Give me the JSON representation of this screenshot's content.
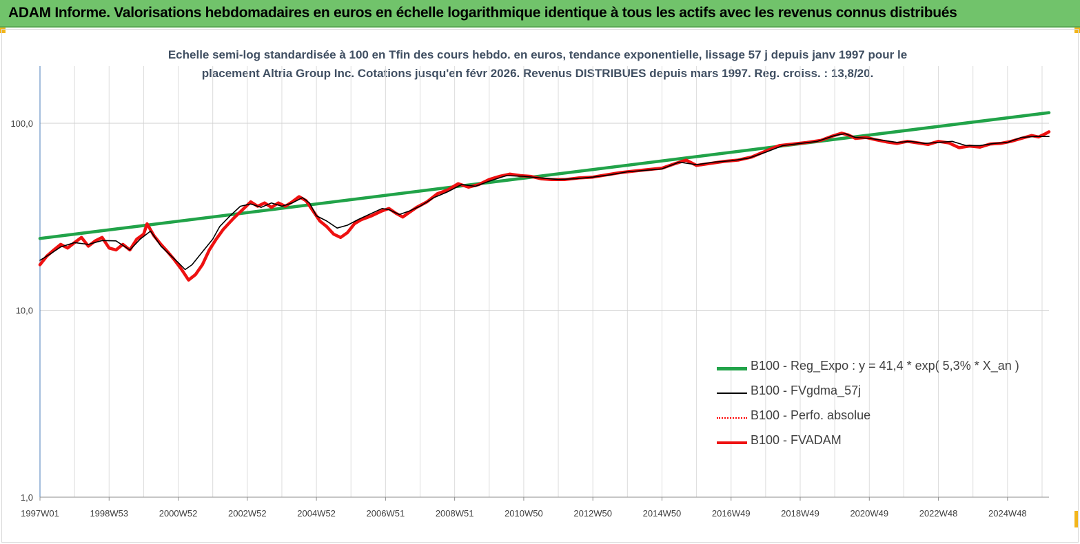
{
  "header": {
    "title": "ADAM Informe. Valorisations hebdomadaires en euros en échelle logarithmique identique à tous les actifs avec les revenus connus distribués"
  },
  "colors": {
    "banner": "#71c36b",
    "regression": "#21a349",
    "smoothed": "#000000",
    "absolute": "#ff0000",
    "fvadam": "#ee1111",
    "subtitle_text": "#404f62"
  },
  "chart_data": {
    "type": "line",
    "title": "Echelle semi-log standardisée à 100 en Tfin des cours hebdo. en euros, tendance exponentielle, lissage 57 j depuis janv 1997 pour le placement Altria Group Inc. Cotations jusqu'en févr 2026. Revenus DISTRIBUES depuis mars 1997. Reg. croiss. : 13,8/20.",
    "title_lines": [
      "Echelle semi-log standardisée à 100 en Tfin des cours hebdo. en euros, tendance exponentielle, lissage 57 j depuis janv 1997 pour le",
      "placement Altria Group Inc. Cotations jusqu'en févr 2026. Revenus DISTRIBUES depuis mars 1997. Reg. croiss. : 13,8/20."
    ],
    "y_scale": "log",
    "ylim": [
      1,
      200
    ],
    "xlim": [
      1997.0,
      2026.2
    ],
    "y_ticks": [
      {
        "value": 1,
        "label": "1,0"
      },
      {
        "value": 10,
        "label": "10,0"
      },
      {
        "value": 100,
        "label": "100,0"
      }
    ],
    "x_ticks": [
      {
        "value": 1997.0,
        "label": "1997W01"
      },
      {
        "value": 1999.0,
        "label": "1998W53"
      },
      {
        "value": 2001.0,
        "label": "2000W52"
      },
      {
        "value": 2003.0,
        "label": "2002W52"
      },
      {
        "value": 2005.0,
        "label": "2004W52"
      },
      {
        "value": 2007.0,
        "label": "2006W51"
      },
      {
        "value": 2009.0,
        "label": "2008W51"
      },
      {
        "value": 2011.0,
        "label": "2010W50"
      },
      {
        "value": 2013.0,
        "label": "2012W50"
      },
      {
        "value": 2015.0,
        "label": "2014W50"
      },
      {
        "value": 2017.0,
        "label": "2016W49"
      },
      {
        "value": 2019.0,
        "label": "2018W49"
      },
      {
        "value": 2021.0,
        "label": "2020W49"
      },
      {
        "value": 2023.0,
        "label": "2022W48"
      },
      {
        "value": 2025.0,
        "label": "2024W48"
      }
    ],
    "minor_grid_step_years": 1,
    "grid": true,
    "legend_position": "bottom-right",
    "series": [
      {
        "name": "B100 - Reg_Expo : y = 41,4 *  exp( 5,3% *  X_an )",
        "style": "thick-solid",
        "color": "#21a349",
        "points": [
          [
            1997.0,
            24.2
          ],
          [
            2026.2,
            114.0
          ]
        ]
      },
      {
        "name": "B100 - FVgdma_57j",
        "style": "thin-solid",
        "color": "#000000",
        "points": [
          [
            1997.0,
            18.5
          ],
          [
            1997.3,
            20.0
          ],
          [
            1997.6,
            21.8
          ],
          [
            1998.0,
            23.0
          ],
          [
            1998.4,
            22.5
          ],
          [
            1998.8,
            23.6
          ],
          [
            1999.2,
            23.5
          ],
          [
            1999.6,
            21.0
          ],
          [
            1999.9,
            24.0
          ],
          [
            2000.2,
            26.5
          ],
          [
            2000.5,
            22.0
          ],
          [
            2000.8,
            19.5
          ],
          [
            2001.0,
            18.0
          ],
          [
            2001.2,
            16.5
          ],
          [
            2001.4,
            17.5
          ],
          [
            2001.7,
            20.5
          ],
          [
            2002.0,
            24.0
          ],
          [
            2002.2,
            28.0
          ],
          [
            2002.5,
            32.0
          ],
          [
            2002.8,
            36.0
          ],
          [
            2003.1,
            37.0
          ],
          [
            2003.4,
            35.5
          ],
          [
            2003.7,
            37.5
          ],
          [
            2004.0,
            36.0
          ],
          [
            2004.3,
            37.5
          ],
          [
            2004.6,
            40.0
          ],
          [
            2004.8,
            37.5
          ],
          [
            2005.0,
            32.0
          ],
          [
            2005.3,
            30.0
          ],
          [
            2005.6,
            27.5
          ],
          [
            2005.9,
            28.5
          ],
          [
            2006.2,
            30.5
          ],
          [
            2006.6,
            33.0
          ],
          [
            2006.9,
            35.0
          ],
          [
            2007.1,
            34.5
          ],
          [
            2007.4,
            32.5
          ],
          [
            2007.7,
            34.0
          ],
          [
            2008.0,
            36.0
          ],
          [
            2008.4,
            40.0
          ],
          [
            2008.8,
            43.0
          ],
          [
            2009.2,
            47.0
          ],
          [
            2009.6,
            46.0
          ],
          [
            2010.0,
            49.0
          ],
          [
            2010.5,
            52.5
          ],
          [
            2011.0,
            52.0
          ],
          [
            2011.5,
            51.0
          ],
          [
            2012.0,
            50.0
          ],
          [
            2012.5,
            50.5
          ],
          [
            2013.0,
            51.5
          ],
          [
            2013.5,
            53.0
          ],
          [
            2014.0,
            55.0
          ],
          [
            2014.5,
            56.0
          ],
          [
            2015.0,
            57.0
          ],
          [
            2015.5,
            62.0
          ],
          [
            2016.0,
            60.0
          ],
          [
            2016.5,
            62.0
          ],
          [
            2017.0,
            63.0
          ],
          [
            2017.5,
            65.0
          ],
          [
            2018.0,
            70.0
          ],
          [
            2018.5,
            76.0
          ],
          [
            2019.0,
            78.0
          ],
          [
            2019.5,
            80.0
          ],
          [
            2020.0,
            86.0
          ],
          [
            2020.3,
            88.0
          ],
          [
            2020.6,
            84.0
          ],
          [
            2021.0,
            83.0
          ],
          [
            2021.4,
            81.0
          ],
          [
            2021.8,
            79.0
          ],
          [
            2022.2,
            80.0
          ],
          [
            2022.6,
            78.0
          ],
          [
            2023.0,
            79.0
          ],
          [
            2023.4,
            80.0
          ],
          [
            2023.8,
            76.0
          ],
          [
            2024.2,
            76.0
          ],
          [
            2024.6,
            78.0
          ],
          [
            2025.0,
            79.0
          ],
          [
            2025.4,
            84.0
          ],
          [
            2025.8,
            85.0
          ],
          [
            2026.2,
            85.0
          ]
        ]
      },
      {
        "name": "B100 - Perfo. absolue",
        "style": "dotted",
        "color": "#ff0000",
        "points": []
      },
      {
        "name": "B100 - FVADAM",
        "style": "thick-solid",
        "color": "#ee1111",
        "points": [
          [
            1997.0,
            17.5
          ],
          [
            1997.2,
            19.5
          ],
          [
            1997.4,
            21.0
          ],
          [
            1997.6,
            22.5
          ],
          [
            1997.8,
            21.5
          ],
          [
            1998.0,
            23.0
          ],
          [
            1998.2,
            24.5
          ],
          [
            1998.4,
            22.0
          ],
          [
            1998.6,
            23.5
          ],
          [
            1998.8,
            24.5
          ],
          [
            1999.0,
            21.5
          ],
          [
            1999.2,
            21.0
          ],
          [
            1999.4,
            22.5
          ],
          [
            1999.6,
            21.0
          ],
          [
            1999.8,
            24.0
          ],
          [
            2000.0,
            25.5
          ],
          [
            2000.1,
            29.0
          ],
          [
            2000.3,
            25.0
          ],
          [
            2000.5,
            22.5
          ],
          [
            2000.7,
            20.5
          ],
          [
            2000.9,
            18.5
          ],
          [
            2001.1,
            16.5
          ],
          [
            2001.3,
            14.5
          ],
          [
            2001.5,
            15.5
          ],
          [
            2001.7,
            17.5
          ],
          [
            2001.9,
            21.0
          ],
          [
            2002.1,
            24.0
          ],
          [
            2002.3,
            27.0
          ],
          [
            2002.6,
            31.0
          ],
          [
            2002.9,
            35.0
          ],
          [
            2003.1,
            38.0
          ],
          [
            2003.3,
            36.0
          ],
          [
            2003.5,
            37.5
          ],
          [
            2003.7,
            35.5
          ],
          [
            2003.9,
            37.5
          ],
          [
            2004.1,
            36.0
          ],
          [
            2004.3,
            38.0
          ],
          [
            2004.5,
            40.5
          ],
          [
            2004.7,
            38.5
          ],
          [
            2004.9,
            34.0
          ],
          [
            2005.1,
            30.0
          ],
          [
            2005.3,
            28.0
          ],
          [
            2005.5,
            25.5
          ],
          [
            2005.7,
            24.5
          ],
          [
            2005.9,
            26.0
          ],
          [
            2006.1,
            29.0
          ],
          [
            2006.3,
            30.5
          ],
          [
            2006.6,
            32.0
          ],
          [
            2006.9,
            34.0
          ],
          [
            2007.1,
            35.0
          ],
          [
            2007.3,
            33.0
          ],
          [
            2007.5,
            31.5
          ],
          [
            2007.7,
            33.5
          ],
          [
            2007.9,
            35.5
          ],
          [
            2008.2,
            38.0
          ],
          [
            2008.5,
            42.0
          ],
          [
            2008.8,
            44.0
          ],
          [
            2009.1,
            47.5
          ],
          [
            2009.4,
            45.5
          ],
          [
            2009.7,
            47.0
          ],
          [
            2010.0,
            50.0
          ],
          [
            2010.3,
            52.0
          ],
          [
            2010.6,
            53.5
          ],
          [
            2010.9,
            52.5
          ],
          [
            2011.2,
            52.0
          ],
          [
            2011.5,
            50.5
          ],
          [
            2011.8,
            50.0
          ],
          [
            2012.2,
            50.0
          ],
          [
            2012.6,
            51.0
          ],
          [
            2013.0,
            51.5
          ],
          [
            2013.4,
            53.0
          ],
          [
            2013.8,
            54.5
          ],
          [
            2014.2,
            55.5
          ],
          [
            2014.6,
            56.5
          ],
          [
            2015.0,
            57.5
          ],
          [
            2015.4,
            61.0
          ],
          [
            2015.7,
            63.5
          ],
          [
            2016.0,
            59.5
          ],
          [
            2016.4,
            61.0
          ],
          [
            2016.8,
            62.5
          ],
          [
            2017.2,
            63.5
          ],
          [
            2017.6,
            66.0
          ],
          [
            2018.0,
            71.0
          ],
          [
            2018.4,
            76.0
          ],
          [
            2018.8,
            77.5
          ],
          [
            2019.2,
            79.0
          ],
          [
            2019.6,
            81.0
          ],
          [
            2019.9,
            85.0
          ],
          [
            2020.2,
            88.5
          ],
          [
            2020.4,
            86.5
          ],
          [
            2020.6,
            83.0
          ],
          [
            2020.9,
            84.0
          ],
          [
            2021.2,
            81.5
          ],
          [
            2021.5,
            79.5
          ],
          [
            2021.8,
            78.0
          ],
          [
            2022.1,
            80.0
          ],
          [
            2022.4,
            78.5
          ],
          [
            2022.7,
            77.0
          ],
          [
            2023.0,
            80.0
          ],
          [
            2023.3,
            78.5
          ],
          [
            2023.6,
            74.0
          ],
          [
            2023.9,
            75.5
          ],
          [
            2024.2,
            74.5
          ],
          [
            2024.5,
            77.5
          ],
          [
            2024.8,
            78.0
          ],
          [
            2025.1,
            80.0
          ],
          [
            2025.4,
            83.0
          ],
          [
            2025.7,
            86.0
          ],
          [
            2025.9,
            84.5
          ],
          [
            2026.1,
            88.0
          ],
          [
            2026.2,
            90.0
          ]
        ]
      }
    ]
  }
}
